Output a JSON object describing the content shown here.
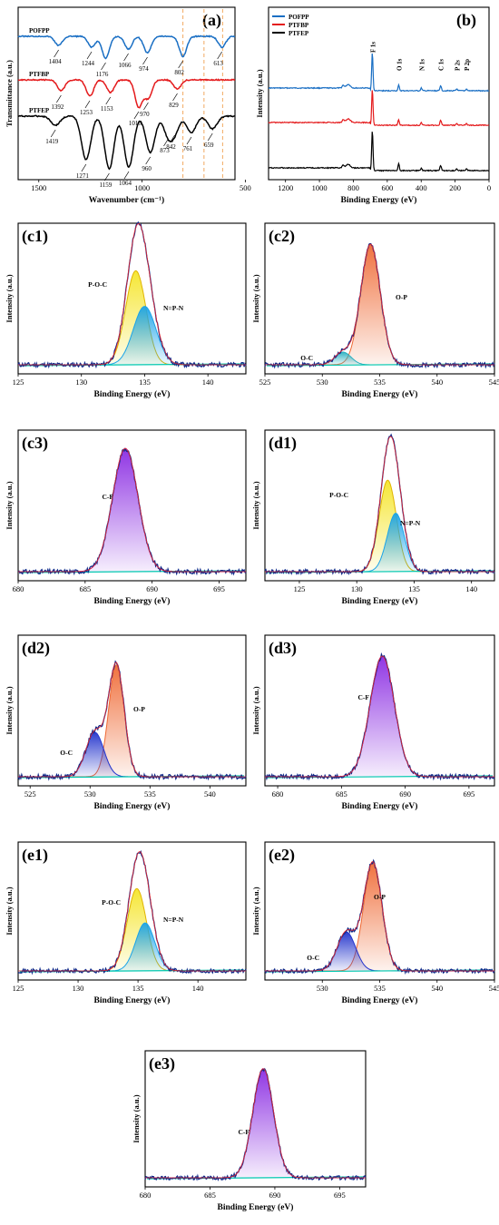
{
  "chart_data": [
    {
      "panel": "(a)",
      "type": "line",
      "xlabel": "Wavenumber (cm⁻¹)",
      "ylabel": "Transmittance (a.u.)",
      "xlim": [
        1600,
        550
      ],
      "ylim": [
        0,
        1
      ],
      "xticks": [
        "1500",
        "1000",
        "500"
      ],
      "series": [
        {
          "name": "POFPP",
          "color": "#1a6fc4",
          "peaks": [
            1404,
            1244,
            1176,
            1066,
            974,
            802,
            613
          ]
        },
        {
          "name": "PTFBP",
          "color": "#e41a1c",
          "peaks": [
            1392,
            1253,
            1153,
            1016,
            970,
            829
          ]
        },
        {
          "name": "PTFEP",
          "color": "#000000",
          "peaks": [
            1419,
            1271,
            1159,
            1064,
            960,
            873,
            842,
            761,
            659
          ]
        }
      ],
      "peak_labels": [
        "1404",
        "1244",
        "1176",
        "1066",
        "974",
        "802",
        "613",
        "1392",
        "1253",
        "1153",
        "1016",
        "970",
        "829",
        "1419",
        "1271",
        "1159",
        "1064",
        "960",
        "873",
        "842",
        "761",
        "659"
      ]
    },
    {
      "panel": "(b)",
      "type": "line",
      "xlabel": "Binding Energy (eV)",
      "ylabel": "Intensity (a.u.)",
      "xlim": [
        1300,
        0
      ],
      "xticks": [
        "1200",
        "1000",
        "800",
        "600",
        "400",
        "200",
        "0"
      ],
      "legend": [
        "POFPP",
        "PTFBP",
        "PTFEP"
      ],
      "peaks": [
        "F 1s",
        "O 1s",
        "N 1s",
        "C 1s",
        "P 2s",
        "P 2p"
      ],
      "peak_positions": [
        688,
        533,
        399,
        285,
        190,
        133
      ]
    },
    {
      "panel": "(c1)",
      "type": "line",
      "xlabel": "Binding Energy (eV)",
      "ylabel": "Intensity (a.u.)",
      "xlim": [
        125,
        143
      ],
      "xticks": [
        "125",
        "130",
        "135",
        "140"
      ],
      "components": [
        {
          "label": "P-O-C",
          "center": 134.3,
          "height": 0.74,
          "color": "#f5e52a"
        },
        {
          "label": "N=P-N",
          "center": 135.0,
          "height": 0.46,
          "color": "#1aa3e8"
        }
      ]
    },
    {
      "panel": "(c2)",
      "type": "line",
      "xlabel": "Binding Energy (eV)",
      "ylabel": "Intensity (a.u.)",
      "xlim": [
        525,
        545
      ],
      "xticks": [
        "525",
        "530",
        "535",
        "540",
        "545"
      ],
      "components": [
        {
          "label": "O-P",
          "center": 534.2,
          "height": 0.95,
          "color": "#ef6a35"
        },
        {
          "label": "O-C",
          "center": 531.8,
          "height": 0.1,
          "color": "#2ab0c0"
        }
      ]
    },
    {
      "panel": "(c3)",
      "type": "line",
      "xlabel": "Binding Energy (eV)",
      "ylabel": "Intensity (a.u.)",
      "xlim": [
        680,
        697
      ],
      "xticks": [
        "680",
        "685",
        "690",
        "695"
      ],
      "components": [
        {
          "label": "C-F",
          "center": 688.0,
          "height": 0.97,
          "color": "#8a2be2"
        }
      ]
    },
    {
      "panel": "(d1)",
      "type": "line",
      "xlabel": "Binding Energy (eV)",
      "ylabel": "Intensity (a.u.)",
      "xlim": [
        122,
        142
      ],
      "xticks": [
        "125",
        "130",
        "135",
        "140"
      ],
      "components": [
        {
          "label": "P-O-C",
          "center": 132.7,
          "height": 0.72,
          "color": "#f5e52a"
        },
        {
          "label": "N=P-N",
          "center": 133.4,
          "height": 0.46,
          "color": "#1aa3e8"
        }
      ]
    },
    {
      "panel": "(d2)",
      "type": "line",
      "xlabel": "Binding Energy (eV)",
      "ylabel": "Intensity (a.u.)",
      "xlim": [
        524,
        543
      ],
      "xticks": [
        "525",
        "530",
        "535",
        "540"
      ],
      "components": [
        {
          "label": "O-P",
          "center": 532.2,
          "height": 0.88,
          "color": "#ef6a35"
        },
        {
          "label": "O-C",
          "center": 530.4,
          "height": 0.35,
          "color": "#2233cc"
        }
      ]
    },
    {
      "panel": "(d3)",
      "type": "line",
      "xlabel": "Binding Energy (eV)",
      "ylabel": "Intensity (a.u.)",
      "xlim": [
        679,
        697
      ],
      "xticks": [
        "680",
        "685",
        "690",
        "695"
      ],
      "components": [
        {
          "label": "C-F",
          "center": 688.2,
          "height": 0.95,
          "color": "#8a2be2"
        }
      ]
    },
    {
      "panel": "(e1)",
      "type": "line",
      "xlabel": "Binding Energy (eV)",
      "ylabel": "Intensity (a.u.)",
      "xlim": [
        125,
        144
      ],
      "xticks": [
        "125",
        "130",
        "135",
        "140"
      ],
      "components": [
        {
          "label": "P-O-C",
          "center": 134.9,
          "height": 0.72,
          "color": "#f5e52a"
        },
        {
          "label": "N=P-N",
          "center": 135.6,
          "height": 0.42,
          "color": "#1aa3e8"
        }
      ]
    },
    {
      "panel": "(e2)",
      "type": "line",
      "xlabel": "Binding Energy (eV)",
      "ylabel": "Intensity (a.u.)",
      "xlim": [
        525,
        545
      ],
      "xticks": [
        "530",
        "535",
        "540",
        "545"
      ],
      "components": [
        {
          "label": "O-P",
          "center": 534.4,
          "height": 0.95,
          "color": "#ef6a35"
        },
        {
          "label": "O-C",
          "center": 532.1,
          "height": 0.34,
          "color": "#2233cc"
        }
      ]
    },
    {
      "panel": "(e3)",
      "type": "line",
      "xlabel": "Binding Energy (eV)",
      "ylabel": "Intensity (a.u.)",
      "xlim": [
        680,
        697
      ],
      "xticks": [
        "680",
        "685",
        "690",
        "695"
      ],
      "components": [
        {
          "label": "C-F",
          "center": 689.1,
          "height": 0.97,
          "color": "#8a2be2"
        }
      ]
    }
  ]
}
